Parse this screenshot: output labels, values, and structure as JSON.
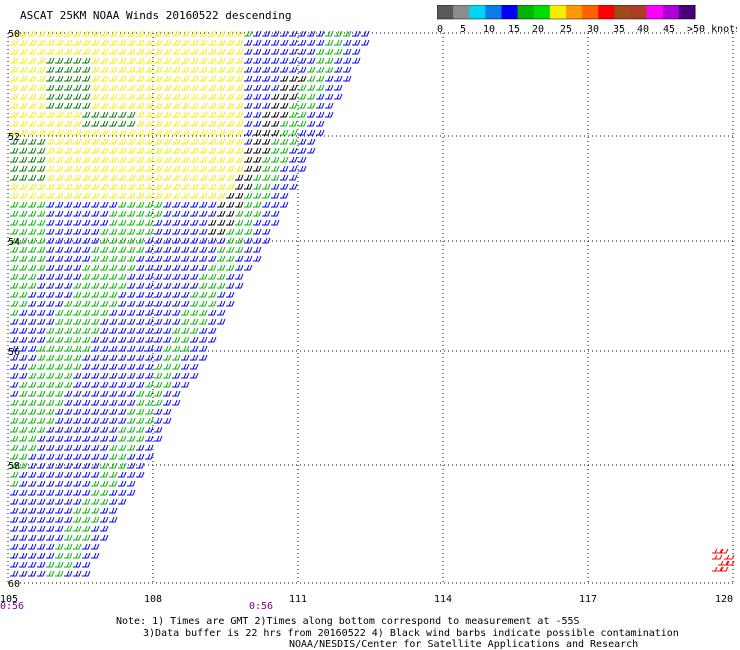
{
  "title": "ASCAT 25KM NOAA Winds 20160522 descending",
  "legend": {
    "labels": [
      "0",
      "5",
      "10",
      "15",
      "20",
      "25",
      "30",
      "35",
      "40",
      "45",
      ">50 knots"
    ],
    "colors": [
      "#595959",
      "#8c8c8c",
      "#00d5f5",
      "#0a7be8",
      "#0000ff",
      "#00b400",
      "#00dd00",
      "#f5ee00",
      "#ff9900",
      "#ff6000",
      "#ff0000",
      "#9c4a1a",
      "#ad3c26",
      "#ff00ff",
      "#b000d8",
      "#4b007a"
    ]
  },
  "axes": {
    "lat_labels": [
      "50",
      "52",
      "54",
      "56",
      "58",
      "60"
    ],
    "lon_labels": [
      "105",
      "108",
      "111",
      "114",
      "117",
      "120"
    ]
  },
  "times": {
    "left": "0:56",
    "middle": "0:56"
  },
  "notes": {
    "line1": "Note: 1) Times are GMT 2)Times along bottom correspond to measurement at -55S",
    "line2": "3)Data buffer is 22 hrs from 20160522 4) Black wind barbs indicate possible contamination",
    "line3": "NOAA/NESDIS/Center for Satellite Applications and Research"
  }
}
